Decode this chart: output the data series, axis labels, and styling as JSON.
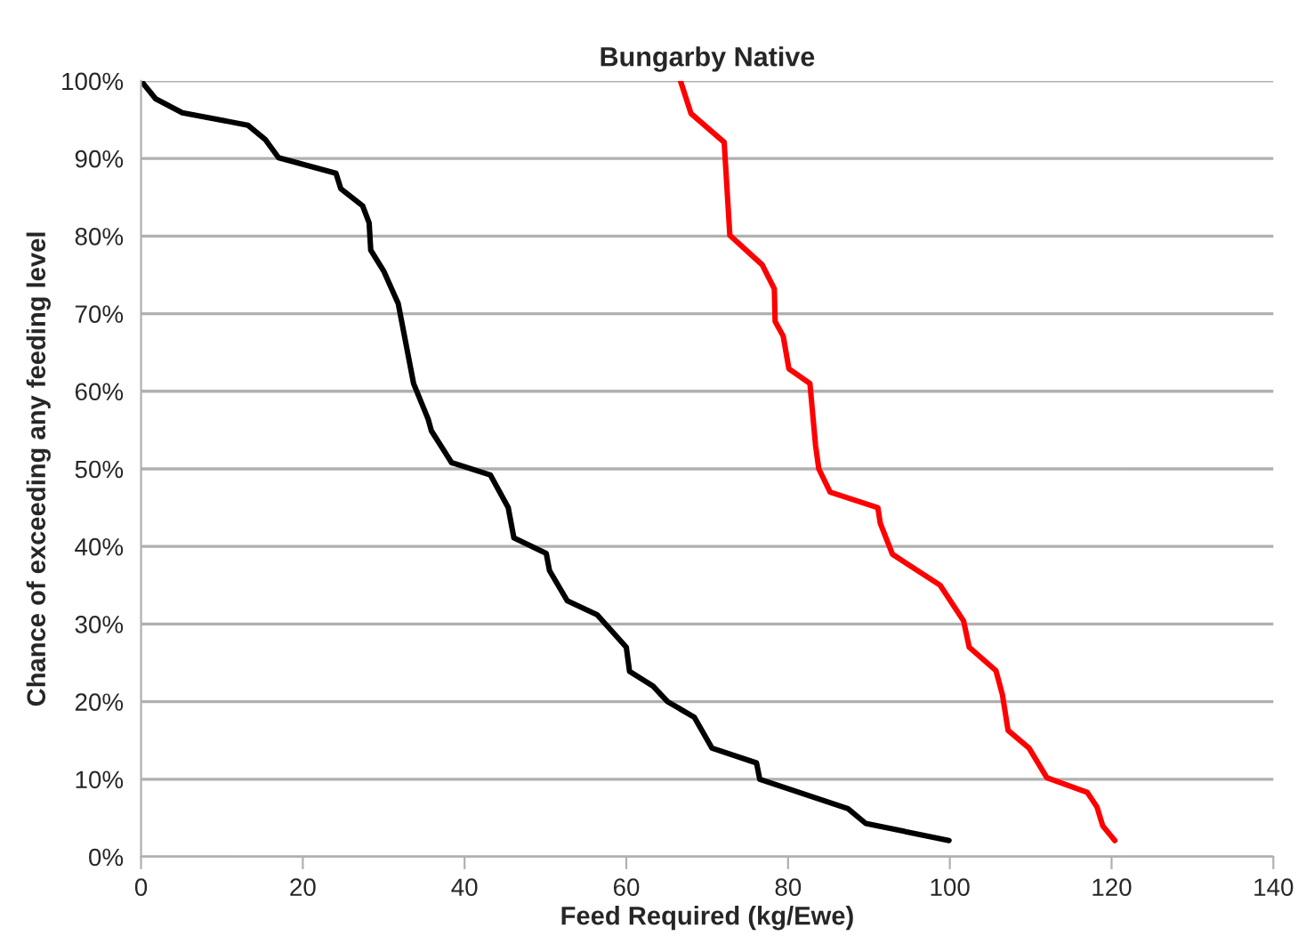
{
  "chart_data": {
    "type": "line",
    "title": "Bungarby Native",
    "xlabel": "Feed Required (kg/Ewe)",
    "ylabel": "Chance of exceeding any feeding level",
    "xlim": [
      0,
      140
    ],
    "xticks": [
      0,
      20,
      40,
      60,
      80,
      100,
      120,
      140
    ],
    "ylim": [
      0,
      100
    ],
    "yticks": [
      {
        "value": 0,
        "label": "0%"
      },
      {
        "value": 10,
        "label": "10%"
      },
      {
        "value": 20,
        "label": "20%"
      },
      {
        "value": 30,
        "label": "30%"
      },
      {
        "value": 40,
        "label": "40%"
      },
      {
        "value": 50,
        "label": "50%"
      },
      {
        "value": 60,
        "label": "60%"
      },
      {
        "value": 70,
        "label": "70%"
      },
      {
        "value": 80,
        "label": "80%"
      },
      {
        "value": 90,
        "label": "90%"
      },
      {
        "value": 100,
        "label": "100%"
      }
    ],
    "grid": "y",
    "legend": false,
    "marker": "none",
    "line_style": "solid",
    "series": [
      {
        "color": "#000000",
        "x": [
          0,
          1.8,
          5.1,
          13.2,
          15.4,
          17,
          24.1,
          24.7,
          27.4,
          28.2,
          28.4,
          30,
          31.8,
          33.7,
          35.5,
          35.9,
          38.4,
          43.2,
          45.4,
          46.1,
          50.1,
          50.5,
          52.7,
          56.4,
          60,
          60.4,
          63.3,
          65.1,
          68.4,
          70.6,
          76.1,
          76.5,
          87.4,
          89.6,
          99.9
        ],
        "values": [
          100,
          97.7,
          95.9,
          94.3,
          92.4,
          90.1,
          88.1,
          86.1,
          83.9,
          81.7,
          78.2,
          75.5,
          71.3,
          61,
          56.4,
          54.9,
          50.8,
          49.2,
          45,
          41.1,
          39.1,
          36.9,
          33,
          31.2,
          27,
          23.9,
          22,
          20,
          18,
          14,
          12.1,
          10,
          6.2,
          4.3,
          2.1
        ]
      },
      {
        "color": "#ff0000",
        "x": [
          66.7,
          68,
          72.1,
          72.8,
          76.8,
          78.3,
          78.4,
          79.4,
          80.1,
          82.7,
          83.4,
          83.8,
          85.2,
          91.1,
          91.4,
          92.9,
          98.8,
          101.7,
          102.4,
          105.7,
          106.5,
          107.2,
          109.8,
          112,
          117,
          118.2,
          118.9,
          120.4
        ],
        "values": [
          100,
          95.8,
          92.1,
          80.1,
          76.3,
          73.2,
          69,
          67.1,
          62.9,
          61,
          53,
          50,
          47,
          45,
          43,
          39,
          35,
          30.4,
          27,
          24,
          20.9,
          16.3,
          14,
          10.2,
          8.3,
          6.4,
          4,
          2.1
        ]
      }
    ]
  }
}
